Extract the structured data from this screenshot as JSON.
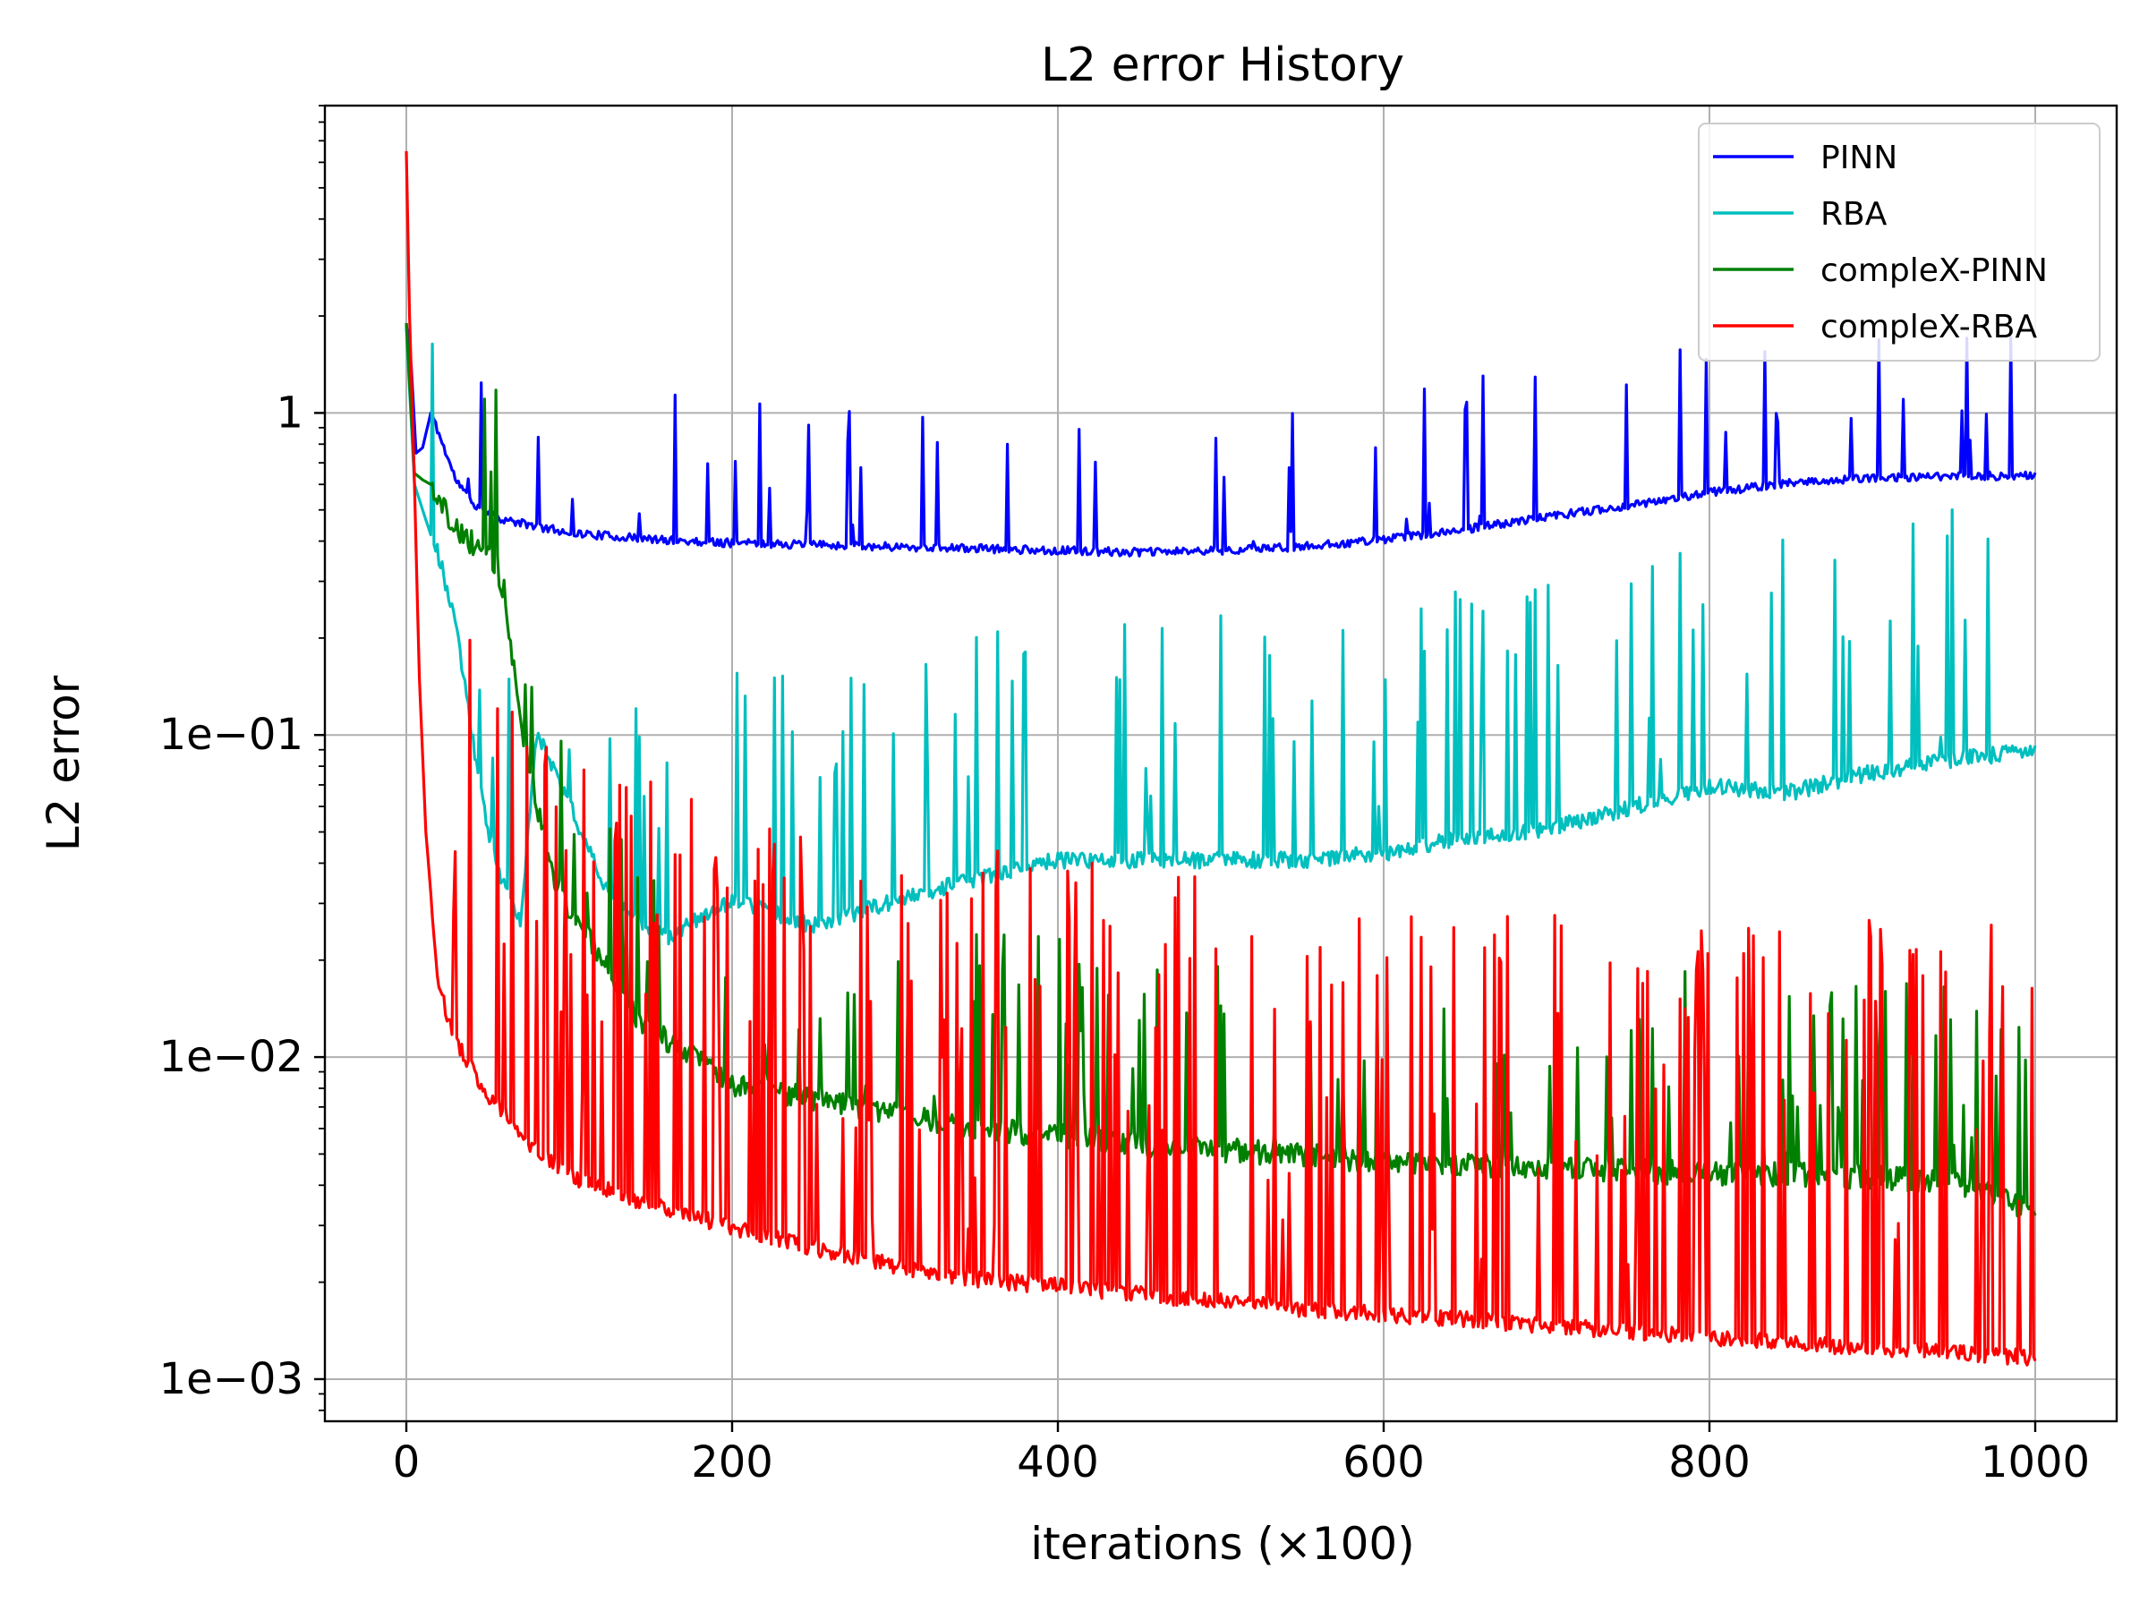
{
  "chart_data": {
    "type": "line",
    "title": "L2 error History",
    "xlabel": "iterations (×100)",
    "ylabel": "L2 error",
    "yscale": "log",
    "xlim": [
      -50,
      1050
    ],
    "ylim": [
      0.00074,
      9.0
    ],
    "grid": true,
    "legend_position": "top-right",
    "x_ticks": [
      0,
      200,
      400,
      600,
      800,
      1000
    ],
    "x_tick_labels": [
      "0",
      "200",
      "400",
      "600",
      "800",
      "1000"
    ],
    "y_ticks": [
      1,
      0.1,
      0.01,
      0.001
    ],
    "y_tick_labels": [
      "1",
      "1e−01",
      "1e−02",
      "1e−03"
    ],
    "series": [
      {
        "name": "PINN",
        "color": "#0000ff",
        "baseline": [
          [
            0,
            1.9
          ],
          [
            3,
            1.4
          ],
          [
            6,
            0.75
          ],
          [
            10,
            0.78
          ],
          [
            15,
            1.0
          ],
          [
            20,
            0.85
          ],
          [
            30,
            0.62
          ],
          [
            40,
            0.52
          ],
          [
            60,
            0.46
          ],
          [
            100,
            0.42
          ],
          [
            150,
            0.4
          ],
          [
            200,
            0.39
          ],
          [
            250,
            0.385
          ],
          [
            300,
            0.38
          ],
          [
            350,
            0.375
          ],
          [
            400,
            0.37
          ],
          [
            450,
            0.365
          ],
          [
            500,
            0.37
          ],
          [
            550,
            0.38
          ],
          [
            600,
            0.4
          ],
          [
            650,
            0.43
          ],
          [
            700,
            0.47
          ],
          [
            750,
            0.51
          ],
          [
            800,
            0.56
          ],
          [
            850,
            0.6
          ],
          [
            900,
            0.62
          ],
          [
            950,
            0.63
          ],
          [
            1000,
            0.63
          ]
        ],
        "noise": 0.06,
        "spike_rate": 0.05,
        "spike_max": 2.0,
        "seed": 11
      },
      {
        "name": "RBA",
        "color": "#00bfbf",
        "baseline": [
          [
            0,
            1.85
          ],
          [
            5,
            0.6
          ],
          [
            10,
            0.5
          ],
          [
            20,
            0.35
          ],
          [
            30,
            0.22
          ],
          [
            40,
            0.1
          ],
          [
            50,
            0.05
          ],
          [
            60,
            0.033
          ],
          [
            70,
            0.026
          ],
          [
            80,
            0.1
          ],
          [
            100,
            0.06
          ],
          [
            120,
            0.035
          ],
          [
            140,
            0.026
          ],
          [
            160,
            0.023
          ],
          [
            200,
            0.03
          ],
          [
            250,
            0.025
          ],
          [
            300,
            0.03
          ],
          [
            350,
            0.035
          ],
          [
            400,
            0.04
          ],
          [
            450,
            0.04
          ],
          [
            500,
            0.04
          ],
          [
            550,
            0.04
          ],
          [
            600,
            0.042
          ],
          [
            650,
            0.047
          ],
          [
            700,
            0.05
          ],
          [
            750,
            0.058
          ],
          [
            800,
            0.068
          ],
          [
            850,
            0.065
          ],
          [
            900,
            0.075
          ],
          [
            950,
            0.082
          ],
          [
            1000,
            0.088
          ]
        ],
        "noise": 0.12,
        "spike_rate": 0.07,
        "spike_max": 5.0,
        "seed": 23
      },
      {
        "name": "compleX-PINN",
        "color": "#008000",
        "baseline": [
          [
            0,
            1.9
          ],
          [
            5,
            0.65
          ],
          [
            10,
            0.62
          ],
          [
            15,
            0.6
          ],
          [
            20,
            0.52
          ],
          [
            30,
            0.42
          ],
          [
            50,
            0.35
          ],
          [
            60,
            0.27
          ],
          [
            70,
            0.11
          ],
          [
            80,
            0.06
          ],
          [
            90,
            0.035
          ],
          [
            100,
            0.027
          ],
          [
            120,
            0.02
          ],
          [
            140,
            0.013
          ],
          [
            160,
            0.011
          ],
          [
            200,
            0.008
          ],
          [
            250,
            0.0072
          ],
          [
            300,
            0.0065
          ],
          [
            350,
            0.0058
          ],
          [
            400,
            0.0055
          ],
          [
            450,
            0.0052
          ],
          [
            500,
            0.005
          ],
          [
            550,
            0.0048
          ],
          [
            600,
            0.0046
          ],
          [
            650,
            0.0045
          ],
          [
            700,
            0.0044
          ],
          [
            750,
            0.0043
          ],
          [
            800,
            0.0042
          ],
          [
            850,
            0.0042
          ],
          [
            900,
            0.0041
          ],
          [
            950,
            0.004
          ],
          [
            1000,
            0.0032
          ]
        ],
        "noise": 0.18,
        "spike_rate": 0.12,
        "spike_max": 3.0,
        "seed": 37
      },
      {
        "name": "compleX-RBA",
        "color": "#ff0000",
        "baseline": [
          [
            0,
            6.5
          ],
          [
            2,
            2.0
          ],
          [
            5,
            0.6
          ],
          [
            8,
            0.15
          ],
          [
            12,
            0.05
          ],
          [
            16,
            0.028
          ],
          [
            20,
            0.016
          ],
          [
            30,
            0.011
          ],
          [
            50,
            0.0075
          ],
          [
            80,
            0.005
          ],
          [
            100,
            0.0042
          ],
          [
            150,
            0.0034
          ],
          [
            200,
            0.0029
          ],
          [
            250,
            0.0025
          ],
          [
            300,
            0.0022
          ],
          [
            350,
            0.002
          ],
          [
            400,
            0.0019
          ],
          [
            450,
            0.0018
          ],
          [
            500,
            0.0017
          ],
          [
            550,
            0.00162
          ],
          [
            600,
            0.00155
          ],
          [
            650,
            0.0015
          ],
          [
            700,
            0.00143
          ],
          [
            750,
            0.00138
          ],
          [
            800,
            0.00132
          ],
          [
            850,
            0.00127
          ],
          [
            900,
            0.00122
          ],
          [
            950,
            0.00118
          ],
          [
            1000,
            0.00114
          ]
        ],
        "noise": 0.12,
        "spike_rate": 0.2,
        "spike_max": 20.0,
        "seed": 53
      }
    ]
  }
}
